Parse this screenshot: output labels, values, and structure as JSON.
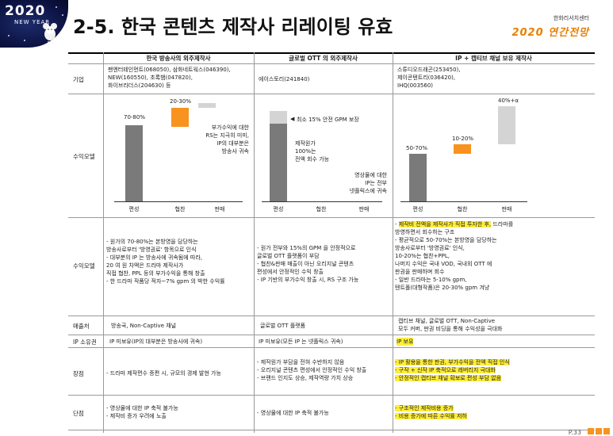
{
  "logo": {
    "year": "2020",
    "subtitle": "NEW YEAR"
  },
  "title": "2-5. 한국 콘텐츠 제작사 리레이팅 유효",
  "brand": {
    "line1": "한화리서치센터",
    "line2": "2020 연간전망"
  },
  "columns": [
    "한국 방송사의 외주제작사",
    "글로벌 OTT 의 외주제작사",
    "IP + 캡티브 채널 보유 제작사"
  ],
  "rows": {
    "company": {
      "label": "기업",
      "c1": [
        "팬엔터테인먼트(068050), 삼화네트웍스(046390),",
        "NEW(160550), 초록뱀(047820),",
        "화이브라더스(204630) 등"
      ],
      "c2": [
        "에이스토리(241840)"
      ],
      "c3": [
        "스튜디오드래곤(253450),",
        "제이콘텐트리(036420),",
        "IHQ(003560)"
      ]
    },
    "revenue_model_label": "수익모델",
    "chart1": {
      "bars": [
        {
          "label": "70-80%"
        },
        {
          "label": "20-30%"
        },
        {
          "label": ""
        }
      ],
      "x": [
        "편성",
        "협찬",
        "판매"
      ],
      "note": [
        "부가수익에 대한",
        "RS는 지극히 미미,",
        "IP의 대부분은",
        "방송사 귀속"
      ]
    },
    "chart2": {
      "x": [
        "편성",
        "협찬",
        "판매"
      ],
      "note_top": "최소 15% 안전 GPM 보장",
      "note_mid": [
        "제작원가",
        "100%는",
        "전액 회수 가능"
      ],
      "note_right": [
        "영상물에 대한",
        "IP는 전부",
        "넷플릭스에 귀속"
      ]
    },
    "chart3": {
      "bars": [
        {
          "label": "50-70%"
        },
        {
          "label": "10-20%"
        },
        {
          "label": "40%+α"
        }
      ],
      "x": [
        "편성",
        "협찬",
        "판매"
      ]
    },
    "revenue_text": {
      "label": "수익모델",
      "c1": [
        "- 원가의 70-80%는 본방영을 담당하는",
        "  방송사로부터 '방영권료' 항목으로 인식",
        "- 대부분의 IP 는 방송사에 귀속됨에 따라,",
        "  20 여 원 차액은 드라마 제작사가",
        "  직접 협찬, PPL 등의 부가수익을 통해 창출",
        "- 한 드라마 작품당 적자~7% gpm 의 박한 수익률"
      ],
      "c2": [
        "- 원가 전부와 15%의 GPM 을 안정적으로",
        "  글로벌 OTT 플랫폼이 부담",
        "- 협찬&판매 매출이 아닌 오리지널 콘텐츠",
        "  편성에서 안정적인 수익 창출",
        "- IP 기반의 부가수익 창출 시, RS 구조 가능"
      ],
      "c3_hl": "제작비 전액을 제작사가 직접 투자한 후,",
      "c3_rest": " 드라마를",
      "c3": [
        "  방영하면서 회수하는 구조",
        "- 평균적으로 50-70%는 본방영을 담당하는",
        "  방송사로부터 '방영권료' 인식,",
        "  10-20%는 협찬+PPL,",
        "  나머지 수익은 국내 VOD, 국내외 OTT 에",
        "  판권을 판매하며 회수",
        "- 일반 드라마는 5-10% gpm,",
        "  텐트폴(대형작품)은 20-30% gpm 겨냥"
      ]
    },
    "buyer": {
      "label": "매출처",
      "c1": "방송국, Non-Captive 채널",
      "c2": "글로벌 OTT 플랫폼",
      "c3": [
        "캡티브 채널, 글로벌 OTT, Non-Captive",
        "모두 커버, 판권 비딩을 통해 수익성을 극대화"
      ]
    },
    "ip": {
      "label": "IP 소유권",
      "c1": "IP 미보유(IP의 대부분은 방송사에 귀속)",
      "c2": "IP 미보유(모든 IP 는 넷플릭스 귀속)",
      "c3": "IP 보유"
    },
    "pros": {
      "label": "장점",
      "c1": "- 드라마 제작편수 증편 시, 규모의 경제 발현 가능",
      "c2": [
        "- 제작원가 부담을 전혀 수반하지 않음",
        "- 오리지널 콘텐츠 편성에서 안정적인 수익 창출",
        "- 브랜드 인지도 상승, 제작역량 가치 상승"
      ],
      "c3": [
        "- IP 활용을 통한 판권, 부가수익을 전액 직접 인식",
        "- 구작 + 신작 IP 축적으로 레버리지 극대화",
        "- 안정적인 캡티브 채널 확보로 편성 부담 없음"
      ]
    },
    "cons": {
      "label": "단점",
      "c1": [
        "- 영상물에 대한 IP 축적 불가능",
        "- 제작비 증가 우려에 노출"
      ],
      "c2": "- 영상물에 대한 IP 축적 불가능",
      "c3": [
        "- 구조적인 제작비용 증가",
        "- 비용 증가에 따른 수익률 저하"
      ]
    }
  },
  "page_number": "P.33",
  "colors": {
    "gray_bar": "#7a7a7a",
    "orange_bar": "#f7931e",
    "light_gray": "#d4d4d4",
    "highlight": "#ffee3a",
    "brand_orange": "#e87f00"
  }
}
